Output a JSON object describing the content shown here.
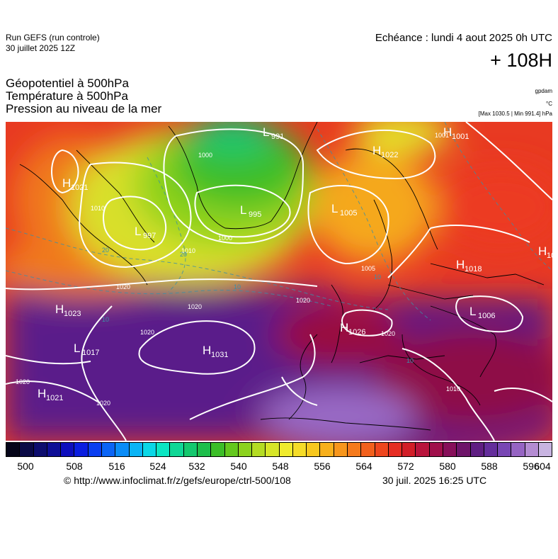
{
  "header": {
    "run_title": "Run GEFS (run controle)",
    "run_date": "30 juillet 2025 12Z",
    "echeance": "Echéance : lundi 4 aout 2025 0h UTC",
    "hour": "+ 108H"
  },
  "fields": [
    "Géopotentiel à 500hPa",
    "Température à 500hPa",
    "Pression au niveau de la mer"
  ],
  "units": {
    "geopotential": "gpdam",
    "temperature": "°C",
    "pressure_range": "[Max 1030.5 | Min 991.4] hPa"
  },
  "map": {
    "pressure_centers": [
      {
        "type": "H",
        "value": "1021",
        "region": "near Labrador"
      },
      {
        "type": "L",
        "value": "997",
        "region": "Davis Strait"
      },
      {
        "type": "L",
        "value": "991",
        "region": "Greenland Sea"
      },
      {
        "type": "H",
        "value": "1001",
        "region": "East Greenland"
      },
      {
        "type": "L",
        "value": "995",
        "region": "Iceland"
      },
      {
        "type": "H",
        "value": "1022",
        "region": "Svalbard"
      },
      {
        "type": "L",
        "value": "1005",
        "region": "Norwegian Sea"
      },
      {
        "type": "H",
        "value": "1018",
        "region": "Russia"
      },
      {
        "type": "H",
        "value": "1023",
        "region": "West Atlantic"
      },
      {
        "type": "L",
        "value": "1017",
        "region": "Mid Atlantic"
      },
      {
        "type": "H",
        "value": "1031",
        "region": "Azores"
      },
      {
        "type": "H",
        "value": "1021",
        "region": "South-west Atlantic"
      },
      {
        "type": "H",
        "value": "1026",
        "region": "Central Europe"
      },
      {
        "type": "L",
        "value": "1006",
        "region": "Black Sea"
      },
      {
        "type": "H",
        "value": "10",
        "region": "Ural (cut)"
      }
    ],
    "isobar_labels": [
      "1000",
      "1010",
      "1020",
      "1000",
      "1010",
      "1020",
      "1020",
      "1020",
      "1020",
      "1001",
      "1005",
      "1020",
      "1010",
      "1020"
    ],
    "isotherm_labels": [
      "20",
      "20",
      "10",
      "10",
      "10",
      "10"
    ]
  },
  "colorbar": {
    "colors": [
      "#050519",
      "#0a0a46",
      "#0d0d6e",
      "#0e0e96",
      "#0e0ebd",
      "#0b1ee0",
      "#0a3ef0",
      "#0a64f5",
      "#0a8cf7",
      "#0ab4f5",
      "#0ad7e6",
      "#0be6c3",
      "#10d796",
      "#14c86e",
      "#1ebe4b",
      "#3cbe28",
      "#64c81e",
      "#8cd21e",
      "#b4dc23",
      "#d7e628",
      "#f0eb2d",
      "#f5dc28",
      "#f8c81e",
      "#f8b01c",
      "#f7961c",
      "#f57a1c",
      "#f2601c",
      "#ee461e",
      "#e62d23",
      "#d21e28",
      "#b9143c",
      "#a00f4b",
      "#870f5a",
      "#6e1469",
      "#5f1e82",
      "#642d9b",
      "#7846b4",
      "#9664c3",
      "#b48cd2",
      "#c8b4e1"
    ],
    "ticks": [
      "500",
      "508",
      "516",
      "524",
      "532",
      "540",
      "548",
      "556",
      "564",
      "572",
      "580",
      "588",
      "596",
      "604"
    ]
  },
  "footer": {
    "credit": "© http://www.infoclimat.fr/z/gefs/europe/ctrl-500/108",
    "timestamp": "30 juil. 2025 16:25 UTC"
  }
}
